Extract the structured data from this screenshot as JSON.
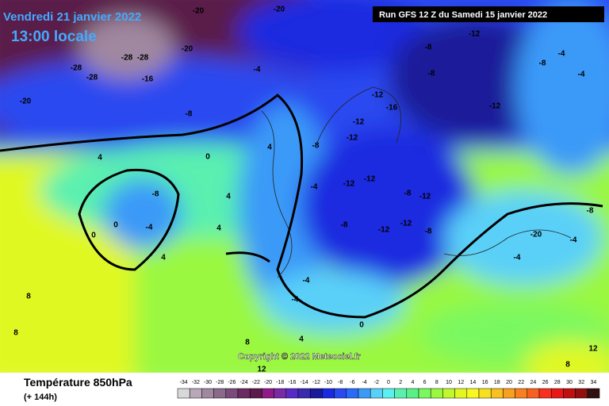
{
  "header": {
    "date": "Vendredi 21 janvier 2022",
    "time": "13:00 locale",
    "run": "Run GFS 12 Z du Samedi 15 janvier 2022"
  },
  "copyright": "Copyright © 2022 Meteociel.fr",
  "footer": {
    "title": "Température 850hPa",
    "lead": "(+ 144h)"
  },
  "legend": {
    "values": [
      -34,
      -32,
      -30,
      -28,
      -26,
      -24,
      -22,
      -20,
      -18,
      -16,
      -14,
      -12,
      -10,
      -8,
      -6,
      -4,
      -2,
      0,
      2,
      4,
      6,
      8,
      10,
      12,
      14,
      16,
      18,
      20,
      22,
      24,
      26,
      28,
      30,
      32,
      34
    ],
    "colors": [
      "#d8d8d8",
      "#b8a8b8",
      "#a088a0",
      "#8a6a8a",
      "#7a4a7a",
      "#6a2a62",
      "#5a1a4a",
      "#901a8a",
      "#7a2aa8",
      "#5a2ac8",
      "#3a2ab0",
      "#1a1a9a",
      "#1a2ae0",
      "#2a4af0",
      "#2a6af8",
      "#3a9af8",
      "#5ad0f8",
      "#5af0f0",
      "#5af0b0",
      "#5af088",
      "#7af860",
      "#9af840",
      "#c0f830",
      "#e0f820",
      "#f8f820",
      "#f8e020",
      "#f8c020",
      "#f8a020",
      "#f88020",
      "#f86020",
      "#f83020",
      "#e81818",
      "#c01010",
      "#901010",
      "#301010"
    ]
  },
  "map": {
    "labels": [
      "-20",
      "-20",
      "-12",
      "-8",
      "-8",
      "-12",
      "-8",
      "-4",
      "-4",
      "-28",
      "-28",
      "-28",
      "-28",
      "-20",
      "-16",
      "-20",
      "-8",
      "-4",
      "-12",
      "-16",
      "-12",
      "-12",
      "-8",
      "-12",
      "-12",
      "-8",
      "-12",
      "-12",
      "-12",
      "-8",
      "-8",
      "-4",
      "-8",
      "-4",
      "0",
      "0",
      "4",
      "0",
      "4",
      "4",
      "4",
      "4",
      "-4",
      "-4",
      "0",
      "4",
      "8",
      "12",
      "8",
      "8",
      "12",
      "8",
      "-4",
      "-20",
      "-4",
      "-8"
    ]
  }
}
